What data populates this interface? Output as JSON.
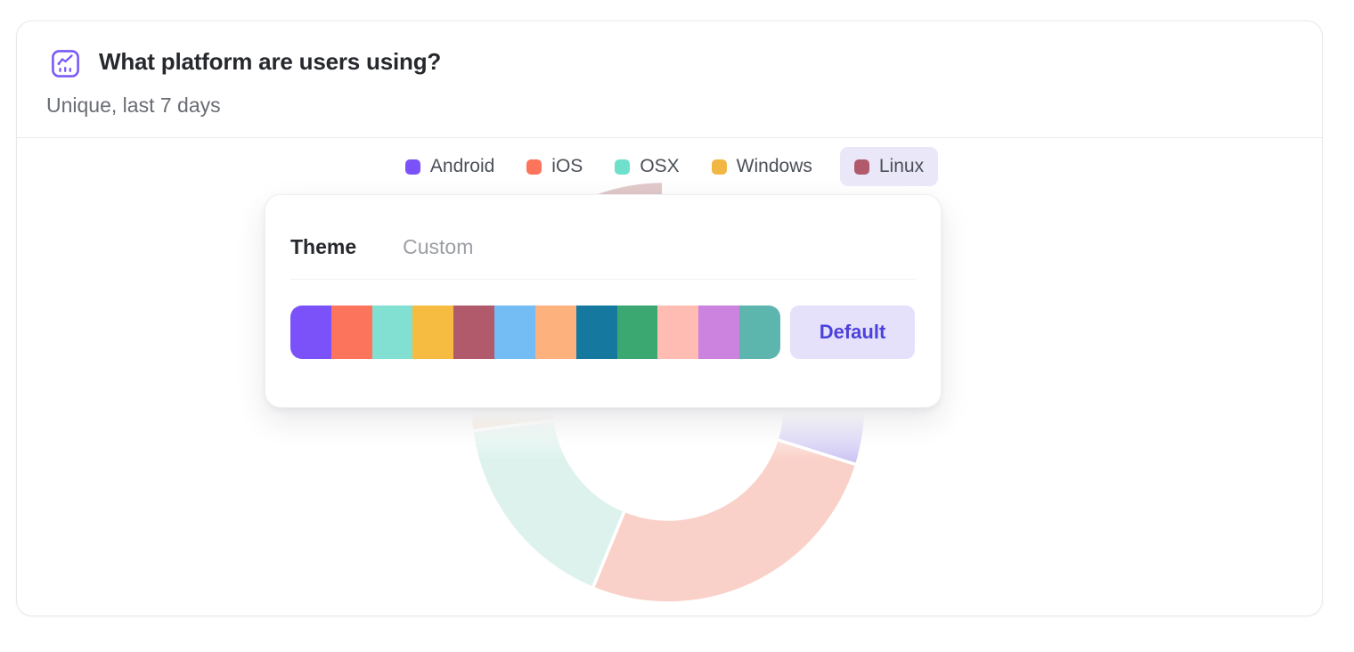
{
  "card": {
    "title": "What platform are users using?",
    "subtitle": "Unique, last 7 days"
  },
  "icons": {
    "header": "line-chart-icon"
  },
  "colors": {
    "accent_purple": "#7A5AF8",
    "title_text": "#26282D",
    "subtitle_text": "#696C72",
    "legend_text": "#4B4F57",
    "legend_highlight_bg": "#E9E7F8",
    "tab_active_text": "#26282D",
    "tab_inactive_text": "#9B9EA4",
    "default_button_bg": "#E5E1FA",
    "default_button_text": "#4C42DB",
    "card_border": "#E8E8EB"
  },
  "legend": {
    "items": [
      {
        "label": "Android",
        "color": "#7B52FA",
        "highlighted": false
      },
      {
        "label": "iOS",
        "color": "#FC745B",
        "highlighted": false
      },
      {
        "label": "OSX",
        "color": "#6FE0CB",
        "highlighted": false
      },
      {
        "label": "Windows",
        "color": "#F2B643",
        "highlighted": false
      },
      {
        "label": "Linux",
        "color": "#B15A6C",
        "highlighted": true
      }
    ]
  },
  "popover": {
    "tabs": [
      {
        "label": "Theme",
        "active": true
      },
      {
        "label": "Custom",
        "active": false
      }
    ],
    "palette": [
      "#7B52FA",
      "#FC745B",
      "#81E0D1",
      "#F5BC41",
      "#B15A6C",
      "#73BDF4",
      "#FDB17C",
      "#15799F",
      "#3CA871",
      "#FEBCB3",
      "#CC83DF",
      "#5CB6AE"
    ],
    "default_button_label": "Default"
  },
  "chart_data": {
    "type": "pie",
    "subtype": "donut",
    "title": "What platform are users using?",
    "note": "no numeric labels shown; values estimated from arc angles, chart dimmed behind open popover, Linux slice selected/exploded",
    "categories": [
      "Android",
      "iOS",
      "OSX",
      "Windows",
      "Linux"
    ],
    "values": [
      29.9,
      26.4,
      16.7,
      21.5,
      5.6
    ],
    "unit": "% of circle",
    "segments": [
      {
        "label": "Android",
        "start_deg": 0,
        "end_deg": 107.5,
        "percent": 29.9,
        "color": "#7B52FA",
        "faded_color": "#CDC6F4",
        "selected": false
      },
      {
        "label": "iOS",
        "start_deg": 107.5,
        "end_deg": 202.4,
        "percent": 26.4,
        "color": "#FC745B",
        "faded_color": "#FAD1C8",
        "selected": false
      },
      {
        "label": "OSX",
        "start_deg": 202.4,
        "end_deg": 262.6,
        "percent": 16.7,
        "color": "#6FE0CB",
        "faded_color": "#DDF2EC",
        "selected": false
      },
      {
        "label": "Windows",
        "start_deg": 262.6,
        "end_deg": 340,
        "percent": 21.5,
        "color": "#F2B643",
        "faded_color": "#F0DDB9",
        "selected": false
      },
      {
        "label": "Linux",
        "start_deg": 340,
        "end_deg": 360,
        "percent": 5.6,
        "color": "#B15A6C",
        "faded_color": "#E1C9CA",
        "selected": true
      }
    ],
    "legend_position": "top-center"
  }
}
